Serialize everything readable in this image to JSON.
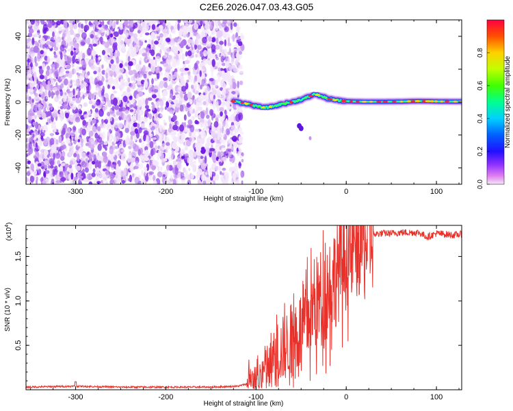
{
  "title": "C2E6.2026.047.03.43.G05",
  "chart_data": [
    {
      "type": "heatmap",
      "title": "C2E6.2026.047.03.43.G05",
      "xlabel": "Height of straight line (km)",
      "ylabel": "Frequency (Hz)",
      "xlim": [
        -355,
        128
      ],
      "ylim": [
        -50,
        50
      ],
      "xticks": [
        -300,
        -200,
        -100,
        0,
        100
      ],
      "yticks": [
        -40,
        -20,
        0,
        20,
        40
      ],
      "noise_region_x": [
        -355,
        -115
      ],
      "signal_ridge": {
        "x": [
          -125,
          -110,
          -100,
          -90,
          -80,
          -70,
          -60,
          -50,
          -40,
          -35,
          -30,
          -20,
          -10,
          0,
          20,
          40,
          60,
          80,
          100,
          128
        ],
        "freq": [
          0.5,
          -1,
          -2.5,
          -3.5,
          -2.5,
          -1,
          0,
          1.5,
          3.5,
          5,
          4,
          2,
          1,
          0.5,
          0.2,
          0.2,
          0.3,
          0.6,
          0.4,
          0.3
        ]
      },
      "isolated_blobs": [
        {
          "x": -50,
          "freq": -16
        },
        {
          "x": -52,
          "freq": -14.5
        },
        {
          "x": -40,
          "freq": -22
        }
      ],
      "colorbar": {
        "label": "Normalized spectral amplitude",
        "ticks": [
          0.0,
          0.2,
          0.4,
          0.6,
          0.8
        ],
        "range": [
          0,
          1
        ]
      }
    },
    {
      "type": "line",
      "xlabel": "Height of straight line (km)",
      "ylabel": "SNR (10 * v/v)",
      "y_scale_label": "(x10",
      "y_scale_exp": "4",
      "y_scale_close": ")",
      "xlim": [
        -355,
        128
      ],
      "ylim": [
        0,
        1.85
      ],
      "xticks": [
        -300,
        -200,
        -100,
        0,
        100
      ],
      "yticks": [
        0.5,
        1.0,
        1.5
      ],
      "ytick_labels": [
        "0.5",
        "1.0",
        "1.5"
      ],
      "series": [
        {
          "color": "#e8312a",
          "x": [
            -355,
            -300,
            -250,
            -200,
            -150,
            -120,
            -105,
            -95,
            -85,
            -75,
            -65,
            -55,
            -45,
            -35,
            -28,
            -20,
            -10,
            0,
            10,
            20,
            30,
            40,
            50,
            60,
            70,
            80,
            90,
            100,
            110,
            120,
            128
          ],
          "y": [
            0.03,
            0.04,
            0.03,
            0.03,
            0.03,
            0.04,
            0.08,
            0.2,
            0.3,
            0.45,
            0.55,
            0.65,
            0.8,
            1.0,
            1.1,
            1.2,
            1.4,
            1.55,
            1.65,
            1.72,
            1.75,
            1.76,
            1.76,
            1.77,
            1.77,
            1.77,
            1.72,
            1.76,
            1.75,
            1.74,
            1.75
          ]
        }
      ]
    }
  ]
}
